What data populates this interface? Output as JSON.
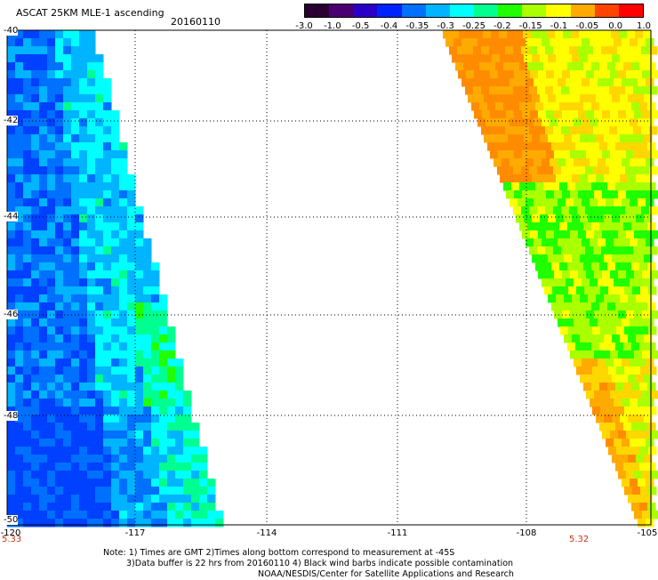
{
  "header": {
    "title": "ASCAT 25KM MLE-1 ascending",
    "date": "20160110"
  },
  "colorbar": {
    "tick_labels": [
      "-3.0",
      "-1.0",
      "-0.5",
      "-0.4",
      "-0.35",
      "-0.3",
      "-0.25",
      "-0.2",
      "-0.15",
      "-0.1",
      "-0.05",
      "0.0",
      "1.0"
    ],
    "colors": [
      "#2a0030",
      "#4a0070",
      "#2a00c8",
      "#0022ff",
      "#0070ff",
      "#00b4ff",
      "#00ffff",
      "#00ff90",
      "#20ff00",
      "#aaff00",
      "#ffff00",
      "#ffaa00",
      "#ff4400",
      "#ff0000"
    ]
  },
  "map": {
    "lat_labels": [
      "-40",
      "-42",
      "-44",
      "-46",
      "-48",
      "-50"
    ],
    "lon_labels": [
      "-120",
      "-117",
      "-114",
      "-111",
      "-108",
      "-105"
    ],
    "corner_left": "5.33",
    "corner_right": "5.32",
    "grid_color": "#000000",
    "swath_colors": {
      "west": [
        "#0040ff",
        "#0070ff",
        "#00b4ff",
        "#00ffff",
        "#00ff90",
        "#20ff00"
      ],
      "east": [
        "#ff8c00",
        "#ffaa00",
        "#ffd700",
        "#ffff00",
        "#aaff00",
        "#20ff00"
      ]
    }
  },
  "notes": [
    "Note: 1) Times are GMT 2)Times along bottom correspond to measurement at -45S",
    "3)Data buffer is 22 hrs from 20160110 4) Black wind barbs indicate possible contamination",
    "NOAA/NESDIS/Center for Satellite Applications and Research"
  ]
}
